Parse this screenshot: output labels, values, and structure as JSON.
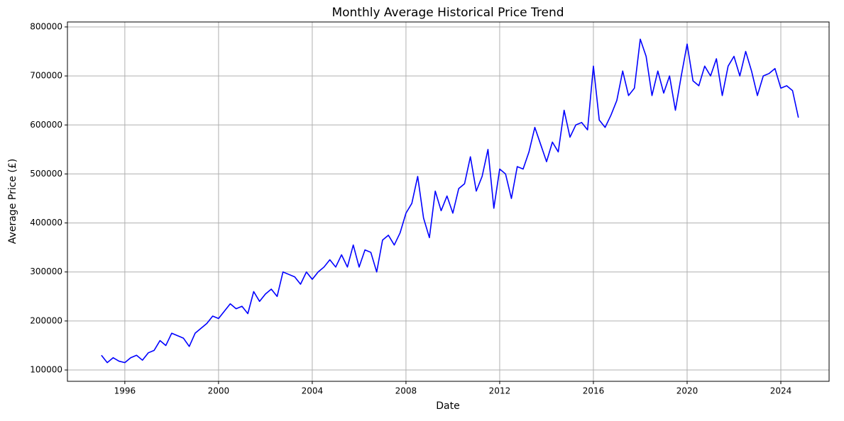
{
  "chart_data": {
    "type": "line",
    "title": "Monthly Average Historical Price Trend",
    "x_label": "Date",
    "y_label": "Average Price (£)",
    "x": [
      1995.0,
      1995.25,
      1995.5,
      1995.75,
      1996.0,
      1996.25,
      1996.5,
      1996.75,
      1997.0,
      1997.25,
      1997.5,
      1997.75,
      1998.0,
      1998.25,
      1998.5,
      1998.75,
      1999.0,
      1999.25,
      1999.5,
      1999.75,
      2000.0,
      2000.25,
      2000.5,
      2000.75,
      2001.0,
      2001.25,
      2001.5,
      2001.75,
      2002.0,
      2002.25,
      2002.5,
      2002.75,
      2003.0,
      2003.25,
      2003.5,
      2003.75,
      2004.0,
      2004.25,
      2004.5,
      2004.75,
      2005.0,
      2005.25,
      2005.5,
      2005.75,
      2006.0,
      2006.25,
      2006.5,
      2006.75,
      2007.0,
      2007.25,
      2007.5,
      2007.75,
      2008.0,
      2008.25,
      2008.5,
      2008.75,
      2009.0,
      2009.25,
      2009.5,
      2009.75,
      2010.0,
      2010.25,
      2010.5,
      2010.75,
      2011.0,
      2011.25,
      2011.5,
      2011.75,
      2012.0,
      2012.25,
      2012.5,
      2012.75,
      2013.0,
      2013.25,
      2013.5,
      2013.75,
      2014.0,
      2014.25,
      2014.5,
      2014.75,
      2015.0,
      2015.25,
      2015.5,
      2015.75,
      2016.0,
      2016.25,
      2016.5,
      2016.75,
      2017.0,
      2017.25,
      2017.5,
      2017.75,
      2018.0,
      2018.25,
      2018.5,
      2018.75,
      2019.0,
      2019.25,
      2019.5,
      2019.75,
      2020.0,
      2020.25,
      2020.5,
      2020.75,
      2021.0,
      2021.25,
      2021.5,
      2021.75,
      2022.0,
      2022.25,
      2022.5,
      2022.75,
      2023.0,
      2023.25,
      2023.5,
      2023.75,
      2024.0,
      2024.25,
      2024.5,
      2024.75
    ],
    "series": [
      {
        "name": "Average Price",
        "color": "#0000ff",
        "values": [
          130000,
          115000,
          125000,
          118000,
          115000,
          125000,
          130000,
          120000,
          135000,
          140000,
          160000,
          150000,
          175000,
          170000,
          165000,
          148000,
          175000,
          185000,
          195000,
          210000,
          205000,
          220000,
          235000,
          225000,
          230000,
          215000,
          260000,
          240000,
          255000,
          265000,
          250000,
          300000,
          295000,
          290000,
          275000,
          300000,
          285000,
          300000,
          310000,
          325000,
          310000,
          335000,
          310000,
          355000,
          310000,
          345000,
          340000,
          300000,
          365000,
          375000,
          355000,
          380000,
          420000,
          440000,
          495000,
          410000,
          370000,
          465000,
          425000,
          455000,
          420000,
          470000,
          480000,
          535000,
          465000,
          495000,
          550000,
          430000,
          510000,
          500000,
          450000,
          515000,
          510000,
          545000,
          595000,
          560000,
          525000,
          565000,
          545000,
          630000,
          575000,
          600000,
          605000,
          590000,
          720000,
          610000,
          595000,
          620000,
          650000,
          710000,
          660000,
          675000,
          775000,
          740000,
          660000,
          710000,
          665000,
          700000,
          630000,
          700000,
          765000,
          690000,
          680000,
          720000,
          700000,
          735000,
          660000,
          720000,
          740000,
          700000,
          750000,
          710000,
          660000,
          700000,
          705000,
          715000,
          675000,
          680000,
          670000,
          615000
        ]
      }
    ],
    "xlim": [
      1993.55,
      2026.06
    ],
    "ylim": [
      76900,
      810100
    ],
    "xticks": [
      1996,
      2000,
      2004,
      2008,
      2012,
      2016,
      2020,
      2024
    ],
    "yticks": [
      100000,
      200000,
      300000,
      400000,
      500000,
      600000,
      700000,
      800000
    ],
    "grid": true
  }
}
